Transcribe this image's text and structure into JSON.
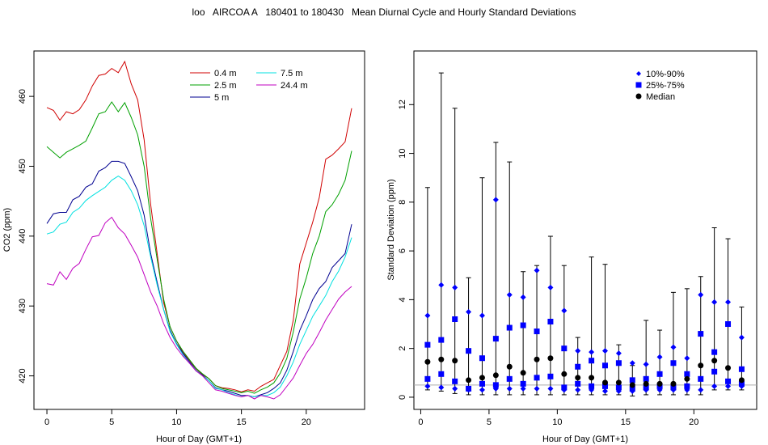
{
  "figure": {
    "title": "loo   AIRCOA A   180401 to 180430   Mean Diurnal Cycle and Hourly Standard Deviations"
  },
  "chart_data": [
    {
      "type": "line",
      "xlabel": "Hour of Day (GMT+1)",
      "ylabel": "CO2 (ppm)",
      "xlim": [
        -1,
        24.5
      ],
      "ylim": [
        415.2,
        466.5
      ],
      "xticks": [
        0,
        5,
        10,
        15,
        20
      ],
      "yticks": [
        420,
        430,
        440,
        450,
        460
      ],
      "grid": false,
      "legend": "top-center",
      "x": [
        0,
        0.5,
        1,
        1.5,
        2,
        2.5,
        3,
        3.5,
        4,
        4.5,
        5,
        5.5,
        6,
        6.5,
        7,
        7.5,
        8,
        8.5,
        9,
        9.5,
        10,
        10.5,
        11,
        11.5,
        12,
        12.5,
        13,
        13.5,
        14,
        14.5,
        15,
        15.5,
        16,
        16.5,
        17,
        17.5,
        18,
        18.5,
        19,
        19.5,
        20,
        20.5,
        21,
        21.5,
        22,
        22.5,
        23,
        23.5
      ],
      "series": [
        {
          "name": "0.4 m",
          "color": "#d00000",
          "values": [
            458.4,
            458,
            456.6,
            457.8,
            457.5,
            458.1,
            459.5,
            461.5,
            463,
            463.2,
            464,
            463.4,
            465,
            461.8,
            459.5,
            453.8,
            444.5,
            437.5,
            430.5,
            427,
            425,
            423.3,
            422.2,
            421,
            420.2,
            419.6,
            418.6,
            418.3,
            418.2,
            418,
            417.7,
            418,
            417.8,
            418.5,
            419,
            419.5,
            421.5,
            423.5,
            428,
            436,
            439,
            442,
            445.5,
            451,
            451.6,
            452.5,
            453.5,
            458.3
          ]
        },
        {
          "name": "2.5 m",
          "color": "#00a000",
          "values": [
            452.8,
            452,
            451.2,
            452,
            452.5,
            453,
            453.6,
            455.5,
            457.5,
            457.8,
            459.2,
            457.8,
            459.1,
            457,
            454.5,
            450,
            442.5,
            436.7,
            431,
            427,
            425,
            423.5,
            422.3,
            421.1,
            420.3,
            419.6,
            418.6,
            418.2,
            418,
            417.8,
            417.6,
            417.8,
            417.5,
            418,
            418.4,
            419,
            420.4,
            422.5,
            426.3,
            431,
            434,
            437.5,
            440,
            443.5,
            444.5,
            446,
            448,
            452.2
          ]
        },
        {
          "name": "5 m",
          "color": "#000090",
          "values": [
            441.8,
            443.2,
            443.4,
            443.4,
            445.2,
            445.7,
            447,
            447.5,
            449.3,
            449.8,
            450.7,
            450.7,
            450.4,
            448.5,
            446.5,
            443,
            437.5,
            433.4,
            429.5,
            426.5,
            424.6,
            423.2,
            422,
            420.8,
            420.1,
            419.3,
            418.3,
            418,
            417.8,
            417.5,
            417.2,
            417.2,
            417,
            417.3,
            417.6,
            418.2,
            419,
            420.8,
            423.5,
            426.5,
            428.6,
            430.9,
            432.5,
            433.5,
            435.5,
            436.5,
            437.5,
            441.7
          ]
        },
        {
          "name": "7.5 m",
          "color": "#00e0e0",
          "values": [
            440.3,
            440.6,
            441.7,
            442,
            443.4,
            444,
            445.1,
            445.8,
            446.4,
            447,
            448,
            448.6,
            448,
            446.5,
            444.5,
            441.5,
            437,
            433,
            429.5,
            426.3,
            424.5,
            423,
            421.8,
            420.8,
            420,
            419.3,
            418.2,
            418,
            417.6,
            417.3,
            417,
            417.2,
            417,
            417.2,
            417.2,
            417.6,
            418.4,
            420,
            422,
            424.5,
            426.5,
            428.5,
            430,
            431.5,
            433.5,
            435,
            437,
            439.8
          ]
        },
        {
          "name": "24.4 m",
          "color": "#c000c0",
          "values": [
            433.2,
            433,
            434.9,
            433.8,
            435.4,
            436.1,
            438.1,
            439.9,
            440.1,
            441.9,
            442.7,
            441.2,
            440.3,
            438.7,
            437,
            434.5,
            432,
            430,
            427.5,
            425.5,
            424,
            422.8,
            421.8,
            420.7,
            420,
            419,
            418,
            417.8,
            417.5,
            417.2,
            417,
            417.2,
            416.7,
            417.2,
            417,
            416.7,
            417.3,
            418.5,
            419.7,
            421.5,
            423.2,
            424.5,
            426.2,
            428,
            429.5,
            431,
            432,
            432.8
          ]
        }
      ]
    },
    {
      "type": "scatter",
      "xlabel": "Hour of Day (GMT+1)",
      "ylabel": "Standard Deviation (ppm)",
      "xlim": [
        -0.5,
        24.6
      ],
      "ylim": [
        -0.5,
        14.2
      ],
      "xticks": [
        0,
        5,
        10,
        15,
        20
      ],
      "yticks": [
        0,
        2,
        4,
        6,
        8,
        10,
        12
      ],
      "grid": false,
      "legend": "top-right",
      "reference_line": 0.5,
      "x": [
        0.5,
        1.5,
        2.5,
        3.5,
        4.5,
        5.5,
        6.5,
        7.5,
        8.5,
        9.5,
        10.5,
        11.5,
        12.5,
        13.5,
        14.5,
        15.5,
        16.5,
        17.5,
        18.5,
        19.5,
        20.5,
        21.5,
        22.5,
        23.5
      ],
      "series": [
        {
          "name": "10%-90%",
          "marker": "diamond",
          "color": "#0000ff",
          "low": [
            0.45,
            0.4,
            0.35,
            0.3,
            0.3,
            0.35,
            0.35,
            0.35,
            0.35,
            0.35,
            0.3,
            0.3,
            0.3,
            0.25,
            0.25,
            0.25,
            0.3,
            0.3,
            0.3,
            0.3,
            0.3,
            0.45,
            0.45,
            0.45
          ],
          "high": [
            3.35,
            4.6,
            4.5,
            3.5,
            3.35,
            8.1,
            4.2,
            4.1,
            5.2,
            4.5,
            3.55,
            1.9,
            1.85,
            1.9,
            1.8,
            1.4,
            1.35,
            1.65,
            2.05,
            1.6,
            4.2,
            3.9,
            3.9,
            2.45
          ]
        },
        {
          "name": "25%-75%",
          "marker": "square",
          "color": "#0000ff",
          "low": [
            0.75,
            0.95,
            0.65,
            0.35,
            0.55,
            0.5,
            0.75,
            0.55,
            0.8,
            0.85,
            0.4,
            0.55,
            0.45,
            0.45,
            0.4,
            0.35,
            0.4,
            0.45,
            0.4,
            0.45,
            0.75,
            1.05,
            0.65,
            0.55
          ],
          "high": [
            2.15,
            2.35,
            3.2,
            1.9,
            1.6,
            2.4,
            2.85,
            2.95,
            2.7,
            3.1,
            2.0,
            1.25,
            1.5,
            1.3,
            1.4,
            0.7,
            0.75,
            0.95,
            1.4,
            0.95,
            2.6,
            1.85,
            3.0,
            1.15
          ]
        },
        {
          "name": "Median",
          "marker": "circle",
          "color": "#000000",
          "values": [
            1.45,
            1.55,
            1.5,
            0.7,
            0.8,
            0.9,
            1.25,
            1.0,
            1.55,
            1.6,
            0.95,
            0.8,
            0.8,
            0.6,
            0.6,
            0.5,
            0.55,
            0.55,
            0.55,
            0.75,
            1.3,
            1.5,
            1.2,
            0.7
          ]
        }
      ],
      "whisker_max": [
        8.6,
        13.3,
        11.85,
        4.9,
        9.0,
        10.45,
        9.65,
        5.15,
        5.4,
        6.6,
        5.4,
        2.45,
        5.75,
        5.45,
        2.15,
        1.3,
        3.15,
        2.75,
        4.3,
        4.45,
        4.95,
        6.95,
        6.5,
        3.7
      ],
      "whisker_min": [
        0.3,
        0.25,
        0.15,
        0.1,
        0.1,
        0.1,
        0.1,
        0.1,
        0.1,
        0.1,
        0.1,
        0.1,
        0.1,
        0.1,
        0.1,
        0.05,
        0.1,
        0.1,
        0.1,
        0.1,
        0.1,
        0.3,
        0.3,
        0.3
      ]
    }
  ]
}
